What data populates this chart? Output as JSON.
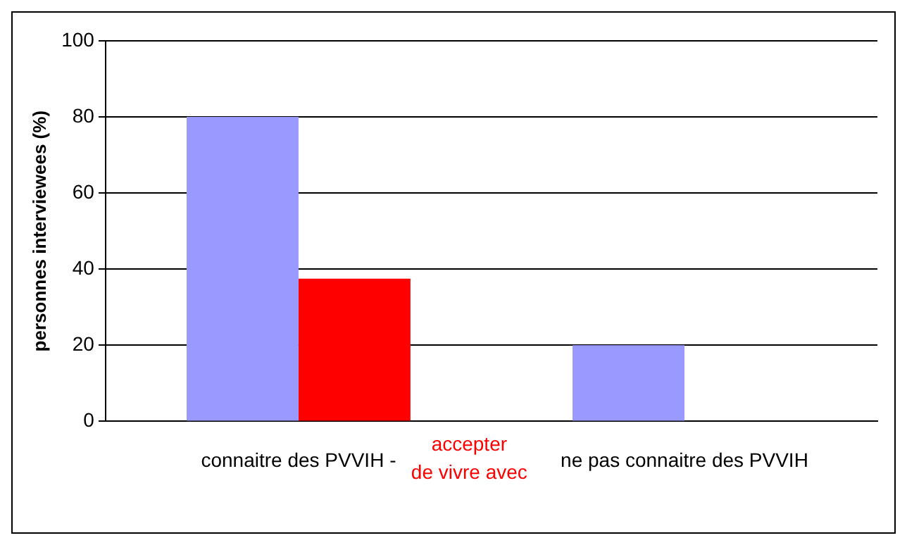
{
  "chart_data": {
    "type": "bar",
    "ylabel": "personnes interviewees (%)",
    "categories": [
      "connaitre des PVVIH -",
      "ne pas connaitre des PVVIH"
    ],
    "series": [
      {
        "color": "#9999ff",
        "values": [
          80,
          20
        ]
      },
      {
        "name": "accepter de vivre avec",
        "color": "#ff0000",
        "values": [
          37.5,
          null
        ]
      }
    ],
    "ylim": [
      0,
      100
    ],
    "yticks": [
      0,
      20,
      40,
      60,
      80,
      100
    ],
    "grid": "y",
    "legend": false
  }
}
